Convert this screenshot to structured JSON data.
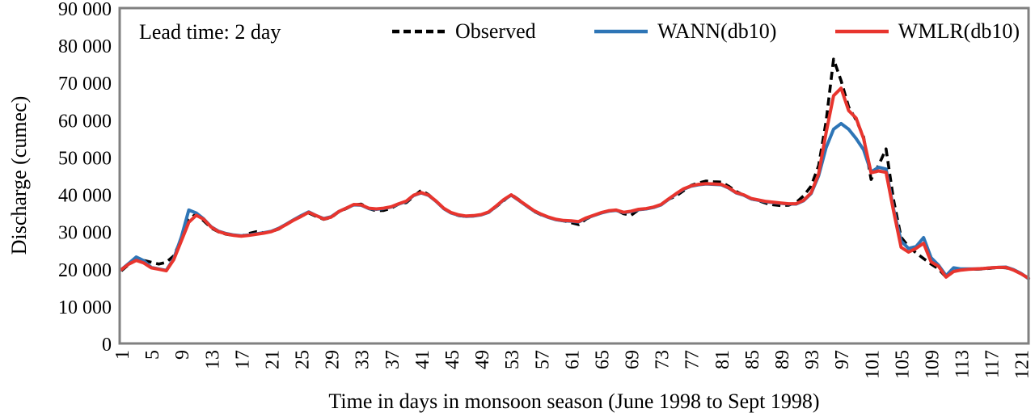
{
  "chart": {
    "annotation": "Lead time: 2 day",
    "ylabel": "Discharge (cumec)",
    "xlabel": "Time in days in monsoon season (June 1998 to Sept 1998)",
    "colors": {
      "observed": "#000000",
      "wann": "#2e75b6",
      "wmlr": "#e8352e",
      "frame": "#808080"
    }
  },
  "chart_data": {
    "type": "line",
    "title": "",
    "xlabel": "Time in days in monsoon season (June 1998 to Sept 1998)",
    "ylabel": "Discharge (cumec)",
    "legend_position": "top-center-inside",
    "grid": false,
    "ylim": [
      0,
      90000
    ],
    "xlim": [
      1,
      122
    ],
    "x_ticks": [
      1,
      5,
      9,
      13,
      17,
      21,
      25,
      29,
      33,
      37,
      41,
      45,
      49,
      53,
      57,
      61,
      65,
      69,
      73,
      77,
      81,
      85,
      89,
      93,
      97,
      101,
      105,
      109,
      113,
      117,
      121
    ],
    "y_ticks": [
      {
        "value": 0,
        "label": "0"
      },
      {
        "value": 10000,
        "label": "10 000"
      },
      {
        "value": 20000,
        "label": "20 000"
      },
      {
        "value": 30000,
        "label": "30 000"
      },
      {
        "value": 40000,
        "label": "40 000"
      },
      {
        "value": 50000,
        "label": "50 000"
      },
      {
        "value": 60000,
        "label": "60 000"
      },
      {
        "value": 70000,
        "label": "70 000"
      },
      {
        "value": 80000,
        "label": "80 000"
      },
      {
        "value": 90000,
        "label": "90 000"
      }
    ],
    "x_start_day": 1,
    "series": [
      {
        "name": "Observed",
        "style": "dashed",
        "color": "#000000",
        "values": [
          19500,
          21200,
          22400,
          22300,
          21800,
          21300,
          21800,
          23500,
          28000,
          33200,
          34800,
          32900,
          31000,
          29900,
          29300,
          29000,
          28800,
          29500,
          30000,
          29700,
          30000,
          30700,
          31900,
          33200,
          34200,
          35000,
          34100,
          33300,
          33800,
          35300,
          36200,
          37200,
          37400,
          36200,
          35600,
          35700,
          36300,
          37400,
          37800,
          39500,
          41100,
          39900,
          38100,
          36200,
          35000,
          34300,
          34100,
          34200,
          34500,
          35200,
          36700,
          38300,
          40000,
          38600,
          37000,
          35500,
          34500,
          33800,
          33200,
          32900,
          32400,
          31900,
          33400,
          34300,
          35000,
          35500,
          35800,
          34800,
          34400,
          35900,
          36100,
          36500,
          37200,
          38700,
          39600,
          41000,
          42400,
          43100,
          43600,
          43400,
          43300,
          42200,
          40800,
          39800,
          38800,
          38300,
          37600,
          37200,
          37000,
          37100,
          37800,
          39600,
          42200,
          47700,
          59500,
          76300,
          70500,
          63500,
          60000,
          55400,
          44000,
          47800,
          52200,
          38500,
          28500,
          26000,
          24300,
          22800,
          21300,
          20000,
          17800,
          19300,
          19800,
          20000,
          19900,
          20000,
          20200,
          20400,
          20300,
          19700,
          18700,
          17600
        ]
      },
      {
        "name": "WANN(db10)",
        "style": "solid",
        "color": "#2e75b6",
        "values": [
          19800,
          21500,
          23200,
          22200,
          20400,
          20000,
          19600,
          22800,
          28500,
          35800,
          35000,
          33400,
          31300,
          30100,
          29500,
          29100,
          28900,
          29100,
          29400,
          29700,
          30100,
          30900,
          32000,
          33200,
          34300,
          35300,
          34300,
          33500,
          34000,
          35400,
          36300,
          37200,
          37100,
          36200,
          36000,
          36200,
          36600,
          37400,
          38100,
          39700,
          40400,
          39700,
          38100,
          36200,
          35000,
          34400,
          34100,
          34200,
          34500,
          35200,
          36800,
          38500,
          39800,
          38400,
          37000,
          35600,
          34600,
          33800,
          33200,
          32900,
          32800,
          32600,
          33600,
          34300,
          35000,
          35500,
          35700,
          35100,
          35400,
          35900,
          36100,
          36500,
          37200,
          38700,
          40100,
          41400,
          42200,
          42600,
          42800,
          42700,
          42600,
          41700,
          40400,
          39800,
          38800,
          38400,
          38000,
          37800,
          37600,
          37400,
          37400,
          38300,
          40200,
          45000,
          52500,
          57500,
          59000,
          57500,
          55000,
          52000,
          46000,
          47300,
          46800,
          36000,
          27500,
          25500,
          26000,
          28400,
          23000,
          21000,
          18200,
          20300,
          20000,
          20000,
          20000,
          20100,
          20300,
          20400,
          20500,
          19800,
          18800,
          17400
        ]
      },
      {
        "name": "WMLR(db10)",
        "style": "solid",
        "color": "#e8352e",
        "values": [
          19800,
          21300,
          22300,
          21600,
          20300,
          19900,
          19500,
          22500,
          27500,
          32500,
          34400,
          33300,
          31200,
          30000,
          29400,
          29000,
          28800,
          29000,
          29300,
          29600,
          30000,
          30800,
          31900,
          33100,
          34100,
          35200,
          34300,
          33400,
          33900,
          35400,
          36300,
          37300,
          37200,
          36300,
          36100,
          36300,
          36700,
          37500,
          38200,
          39800,
          40500,
          39800,
          38200,
          36300,
          35100,
          34500,
          34200,
          34300,
          34600,
          35300,
          36900,
          38600,
          39900,
          38500,
          37100,
          35700,
          34700,
          33900,
          33300,
          33000,
          32900,
          32700,
          33700,
          34400,
          35100,
          35600,
          35800,
          35200,
          35500,
          36000,
          36200,
          36600,
          37300,
          38800,
          40200,
          41500,
          42300,
          42700,
          42900,
          42800,
          42700,
          41800,
          40500,
          39900,
          38900,
          38500,
          38100,
          37900,
          37700,
          37500,
          37500,
          38400,
          40400,
          45500,
          56500,
          66500,
          68500,
          62500,
          60500,
          55000,
          45800,
          46300,
          45900,
          35500,
          25800,
          24500,
          25500,
          26900,
          21900,
          20700,
          17800,
          19300,
          19700,
          19900,
          20000,
          20100,
          20300,
          20400,
          20400,
          19700,
          18700,
          17500
        ]
      }
    ]
  }
}
